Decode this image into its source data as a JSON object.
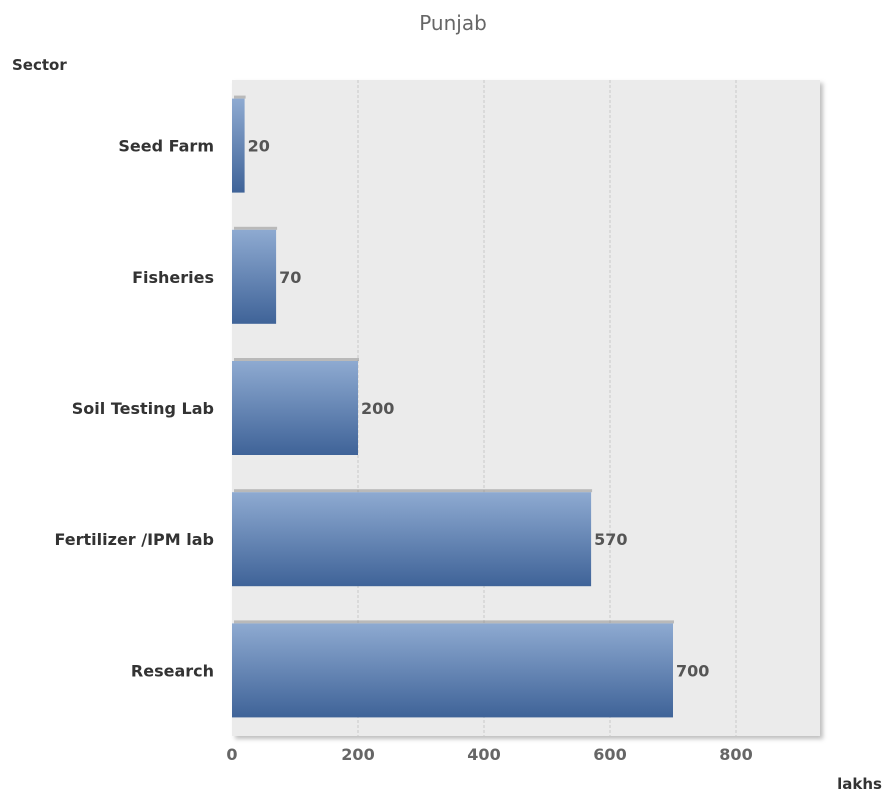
{
  "chart_data": {
    "type": "bar",
    "orientation": "horizontal",
    "title": "Punjab",
    "ylabel": "Sector",
    "xlabel": "lakhs",
    "categories": [
      "Seed Farm",
      "Fisheries",
      "Soil Testing Lab",
      "Fertilizer /IPM lab",
      "Research"
    ],
    "values": [
      20,
      70,
      200,
      570,
      700
    ],
    "data_labels": [
      "20",
      "70",
      "200",
      "570",
      "700"
    ],
    "xlim": [
      0,
      940
    ],
    "xticks": [
      0,
      200,
      400,
      600,
      800
    ],
    "xtick_labels": [
      "0",
      "200",
      "400",
      "600",
      "800"
    ],
    "grid": true,
    "legend": "none",
    "colors": {
      "bar_top": "#8eaad1",
      "bar_bottom": "#3f6398",
      "plot_bg": "#ebebeb",
      "grid": "#c8c8c8"
    }
  }
}
